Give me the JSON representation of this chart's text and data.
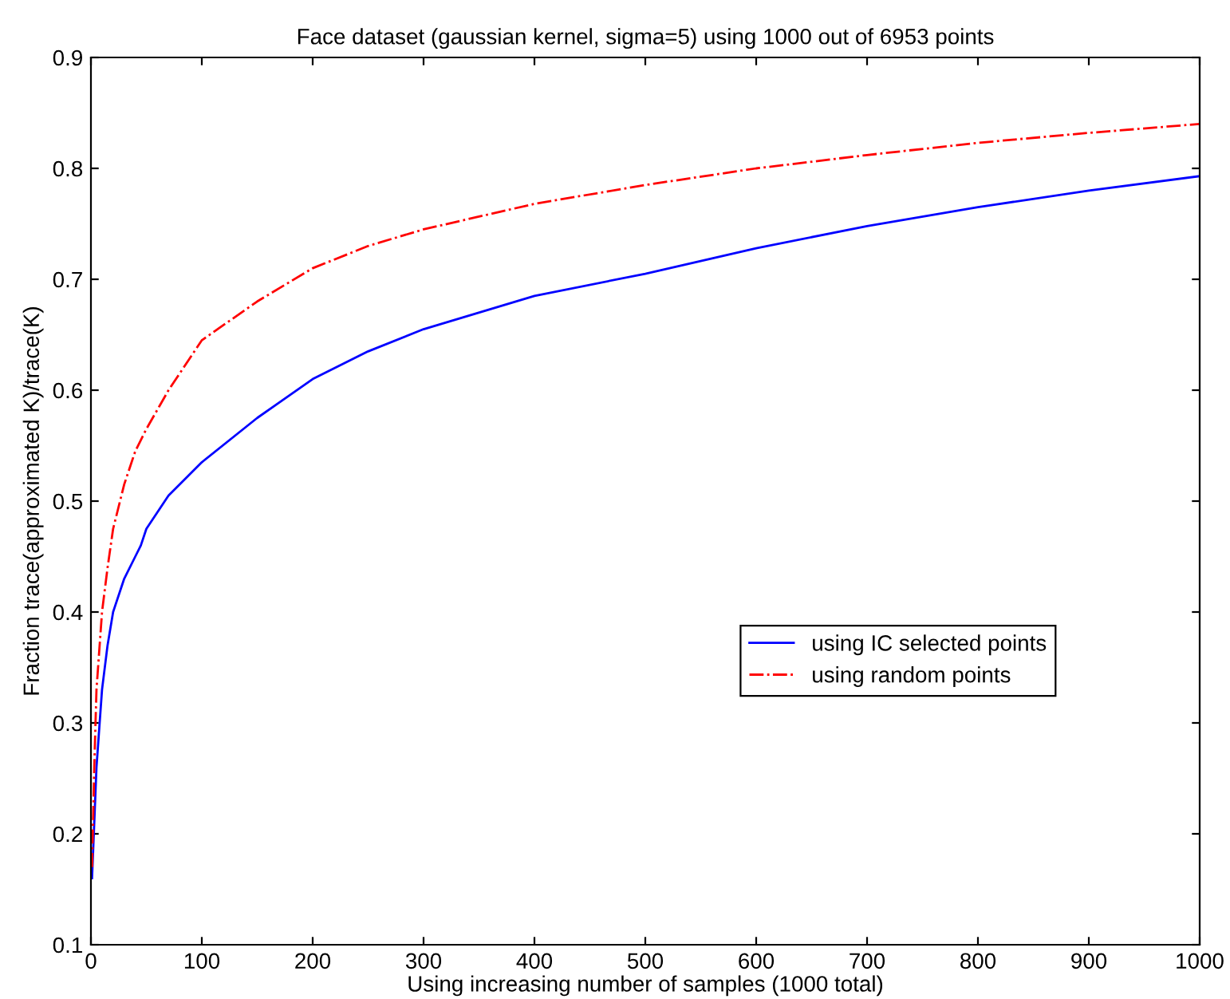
{
  "chart_data": {
    "type": "line",
    "title": "Face dataset (gaussian kernel, sigma=5) using 1000 out of 6953 points",
    "xlabel": "Using increasing number of samples (1000 total)",
    "ylabel": "Fraction trace(approximated K)/trace(K)",
    "x": [
      1,
      3,
      5,
      10,
      15,
      20,
      30,
      40,
      45,
      50,
      70,
      100,
      150,
      200,
      250,
      300,
      400,
      500,
      600,
      700,
      800,
      900,
      1000
    ],
    "series": [
      {
        "name": "using IC selected points",
        "color": "#0000ff",
        "line_style": "solid",
        "values": [
          0.16,
          0.21,
          0.26,
          0.33,
          0.37,
          0.4,
          0.43,
          0.45,
          0.46,
          0.475,
          0.505,
          0.535,
          0.575,
          0.61,
          0.635,
          0.655,
          0.685,
          0.705,
          0.728,
          0.748,
          0.765,
          0.78,
          0.793
        ]
      },
      {
        "name": "using random points",
        "color": "#ff0000",
        "line_style": "dashdot",
        "values": [
          0.17,
          0.26,
          0.33,
          0.4,
          0.44,
          0.475,
          0.515,
          0.545,
          0.555,
          0.565,
          0.6,
          0.645,
          0.68,
          0.71,
          0.73,
          0.745,
          0.768,
          0.785,
          0.8,
          0.812,
          0.823,
          0.832,
          0.84
        ]
      }
    ],
    "xlim": [
      0,
      1000
    ],
    "ylim": [
      0.1,
      0.9
    ],
    "xticks": [
      0,
      100,
      200,
      300,
      400,
      500,
      600,
      700,
      800,
      900,
      1000
    ],
    "yticks": [
      0.1,
      0.2,
      0.3,
      0.4,
      0.5,
      0.6,
      0.7,
      0.8,
      0.9
    ],
    "grid": false,
    "legend": "right",
    "marker": "none"
  }
}
